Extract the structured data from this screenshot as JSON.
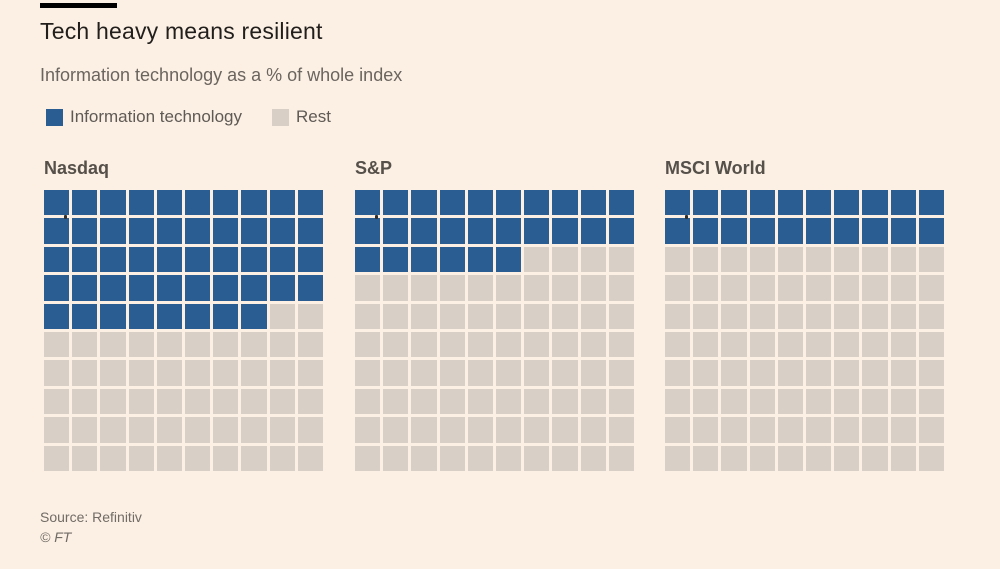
{
  "page": {
    "background": "#FCF0E4"
  },
  "header": {
    "title": "Tech heavy means resilient",
    "subtitle": "Information technology as a % of whole index"
  },
  "legend": {
    "items": [
      {
        "label": "Information technology",
        "color": "#2A5E93"
      },
      {
        "label": "Rest",
        "color": "#D8D0C6"
      }
    ]
  },
  "chart_data": {
    "type": "waffle",
    "title": "Tech heavy means resilient",
    "subtitle": "Information technology as a % of whole index",
    "unit": "% of whole index",
    "grid": {
      "rows": 10,
      "cols": 10,
      "cell_unit_percent": 1,
      "fill_order": "row-major from top-left"
    },
    "categories": [
      "Nasdaq",
      "S&P",
      "MSCI World"
    ],
    "series": [
      {
        "name": "Nasdaq",
        "value": 48
      },
      {
        "name": "S&P",
        "value": 26
      },
      {
        "name": "MSCI World",
        "value": 20
      }
    ],
    "legend": [
      "Information technology",
      "Rest"
    ],
    "legend_position": "top-left",
    "colors": {
      "filled": "#2A5E93",
      "rest": "#D8D0C6"
    }
  },
  "footer": {
    "source": "Source: Refinitiv",
    "copyright": "© FT"
  }
}
